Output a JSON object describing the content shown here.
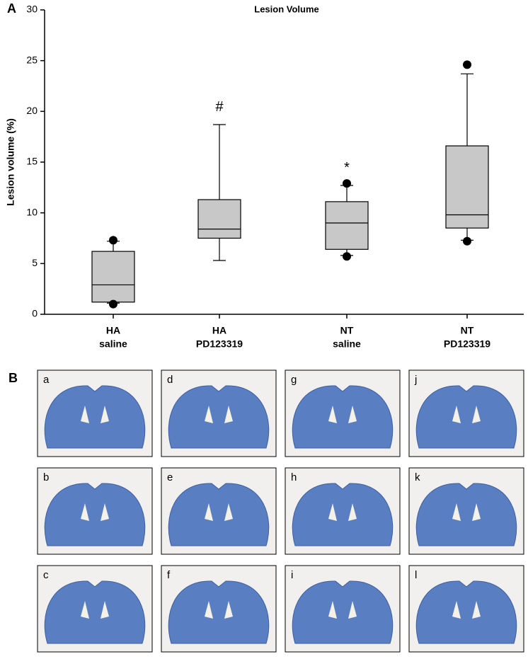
{
  "panel_a_label": "A",
  "chart_data": {
    "type": "box",
    "title": "Lesion Volume",
    "y_label": "Lesion volume (%)",
    "categories": [
      [
        "HA",
        "saline"
      ],
      [
        "HA",
        "PD123319"
      ],
      [
        "NT",
        "saline"
      ],
      [
        "NT",
        "PD123319"
      ]
    ],
    "boxes": [
      {
        "min": 1.1,
        "q1": 1.2,
        "median": 2.9,
        "q3": 6.2,
        "max": 7.2,
        "outliers": [
          7.3,
          1.0
        ]
      },
      {
        "min": 5.3,
        "q1": 7.5,
        "median": 8.4,
        "q3": 11.3,
        "max": 18.7,
        "outliers": [],
        "annotation": "#"
      },
      {
        "min": 5.8,
        "q1": 6.4,
        "median": 9.0,
        "q3": 11.1,
        "max": 12.7,
        "outliers": [
          12.9,
          5.7
        ],
        "annotation": "*"
      },
      {
        "min": 7.3,
        "q1": 8.5,
        "median": 9.8,
        "q3": 16.6,
        "max": 23.7,
        "outliers": [
          24.6,
          7.2
        ]
      }
    ],
    "color": "#c8c8c8",
    "ylim": [
      0,
      30
    ],
    "yticks": [
      0,
      5,
      10,
      15,
      20,
      25,
      30
    ]
  },
  "panel_b": {
    "label": "B",
    "panels": [
      "a",
      "d",
      "g",
      "j",
      "b",
      "e",
      "h",
      "k",
      "c",
      "f",
      "i",
      "l"
    ]
  }
}
